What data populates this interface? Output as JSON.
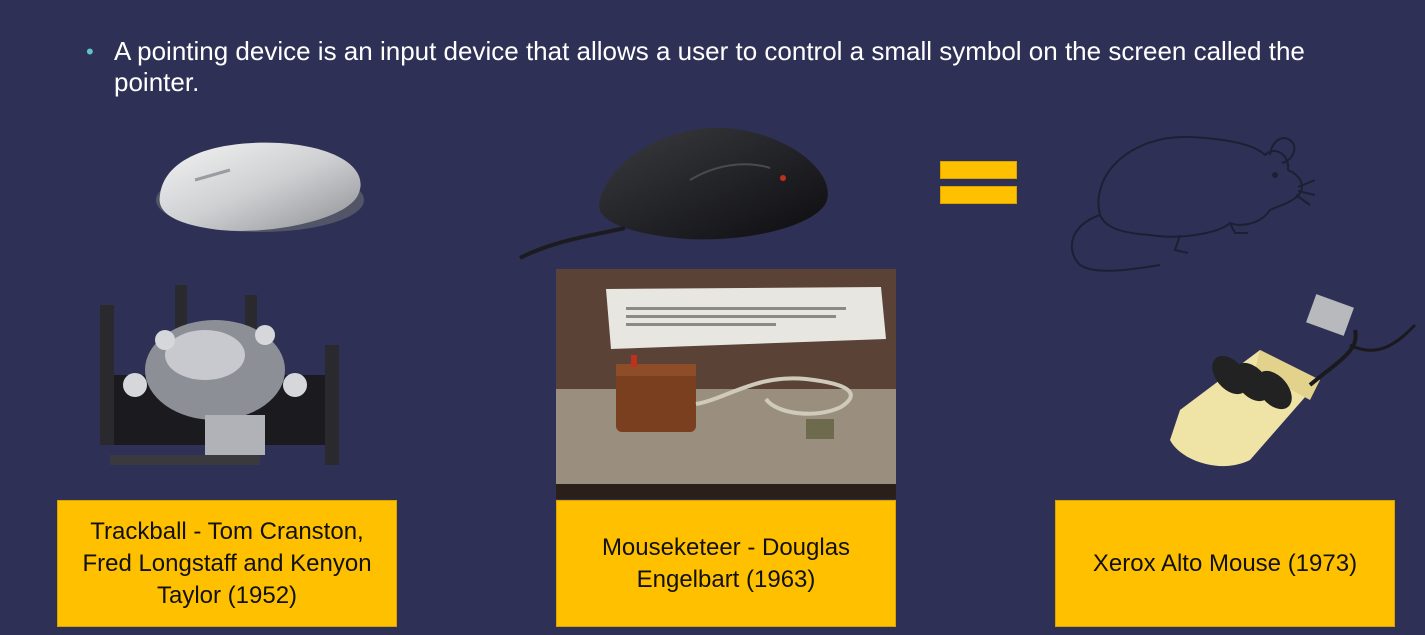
{
  "slide": {
    "bullet": {
      "marker": "•",
      "text": "A pointing device is an input device that allows a user to control a small symbol on the screen called the pointer."
    },
    "equals_symbol_color": "#ffc000",
    "captions": [
      {
        "text": "Trackball - Tom Cranston, Fred Longstaff and Kenyon Taylor (1952)"
      },
      {
        "text": "Mouseketeer - Douglas Engelbart (1963)"
      },
      {
        "text": "Xerox Alto Mouse (1973)"
      }
    ],
    "colors": {
      "background": "#2f3056",
      "caption_bg": "#ffc000",
      "bullet_marker": "#5fc4c6"
    }
  }
}
